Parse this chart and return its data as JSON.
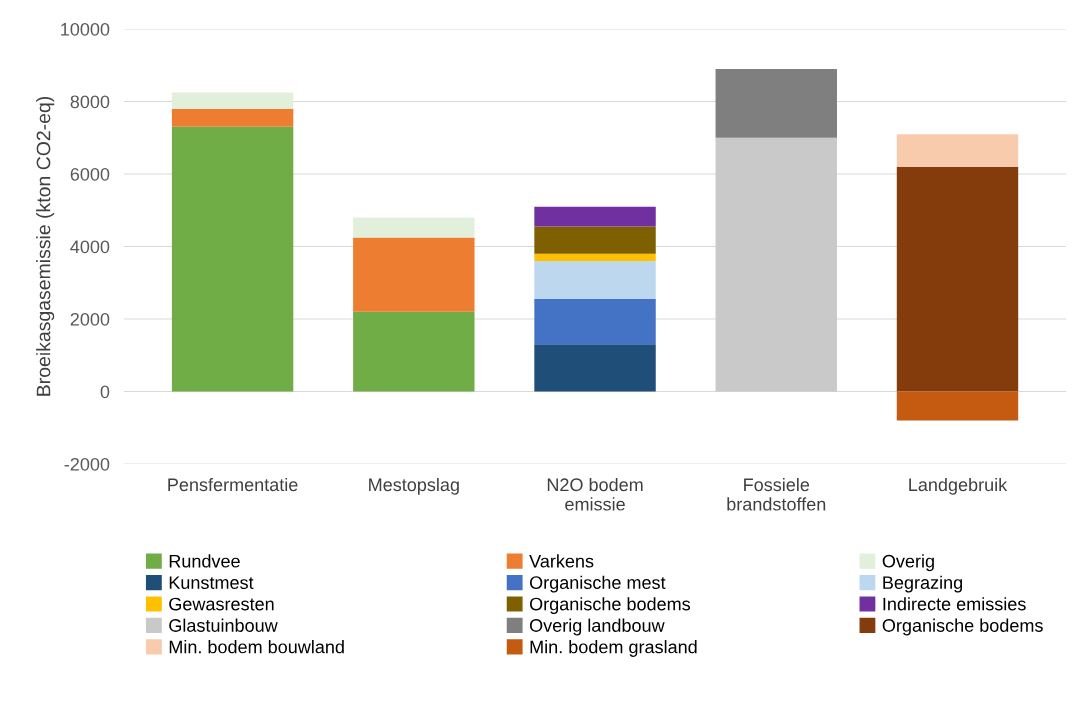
{
  "chart_data": {
    "type": "bar",
    "stacked": true,
    "ylabel": "Broeikasgasemissie (kton CO2-eq)",
    "categories": [
      "Pensfermentatie",
      "Mestopslag",
      "N2O bodem\nemissie",
      "Fossiele\nbrandstoffen",
      "Landgebruik"
    ],
    "ylim": [
      -2000,
      10000
    ],
    "yticks": [
      -2000,
      0,
      2000,
      4000,
      6000,
      8000,
      10000
    ],
    "grid": "y",
    "legend": "bottom",
    "series": [
      {
        "name": "Rundvee",
        "color": "#70ad47",
        "values": [
          7300,
          2200,
          null,
          null,
          null
        ]
      },
      {
        "name": "Varkens",
        "color": "#ed7d31",
        "values": [
          500,
          2050,
          null,
          null,
          null
        ]
      },
      {
        "name": "Overig",
        "color": "#e2efda",
        "values": [
          450,
          550,
          null,
          null,
          null
        ]
      },
      {
        "name": "Kunstmest",
        "color": "#1f4e79",
        "values": [
          null,
          null,
          1300,
          null,
          null
        ]
      },
      {
        "name": "Organische mest",
        "color": "#4472c4",
        "values": [
          null,
          null,
          1250,
          null,
          null
        ]
      },
      {
        "name": "Begrazing",
        "color": "#bdd7ee",
        "values": [
          null,
          null,
          1050,
          null,
          null
        ]
      },
      {
        "name": "Gewasresten",
        "color": "#ffc000",
        "values": [
          null,
          null,
          200,
          null,
          null
        ]
      },
      {
        "name": "Organische bodems",
        "color": "#7f6000",
        "values": [
          null,
          null,
          750,
          null,
          null
        ]
      },
      {
        "name": "Indirecte emissies",
        "color": "#7030a0",
        "values": [
          null,
          null,
          550,
          null,
          null
        ]
      },
      {
        "name": "Glastuinbouw",
        "color": "#c9c9c9",
        "values": [
          null,
          null,
          null,
          7000,
          null
        ]
      },
      {
        "name": "Overig landbouw",
        "color": "#7f7f7f",
        "values": [
          null,
          null,
          null,
          1900,
          null
        ]
      },
      {
        "name": "Organische bodems",
        "color": "#843c0c",
        "values": [
          null,
          null,
          null,
          null,
          6200
        ]
      },
      {
        "name": "Min. bodem bouwland",
        "color": "#f8cbad",
        "values": [
          null,
          null,
          null,
          null,
          900
        ]
      },
      {
        "name": "Min. bodem grasland",
        "color": "#c55a11",
        "values": [
          null,
          null,
          null,
          null,
          -800
        ]
      }
    ]
  }
}
